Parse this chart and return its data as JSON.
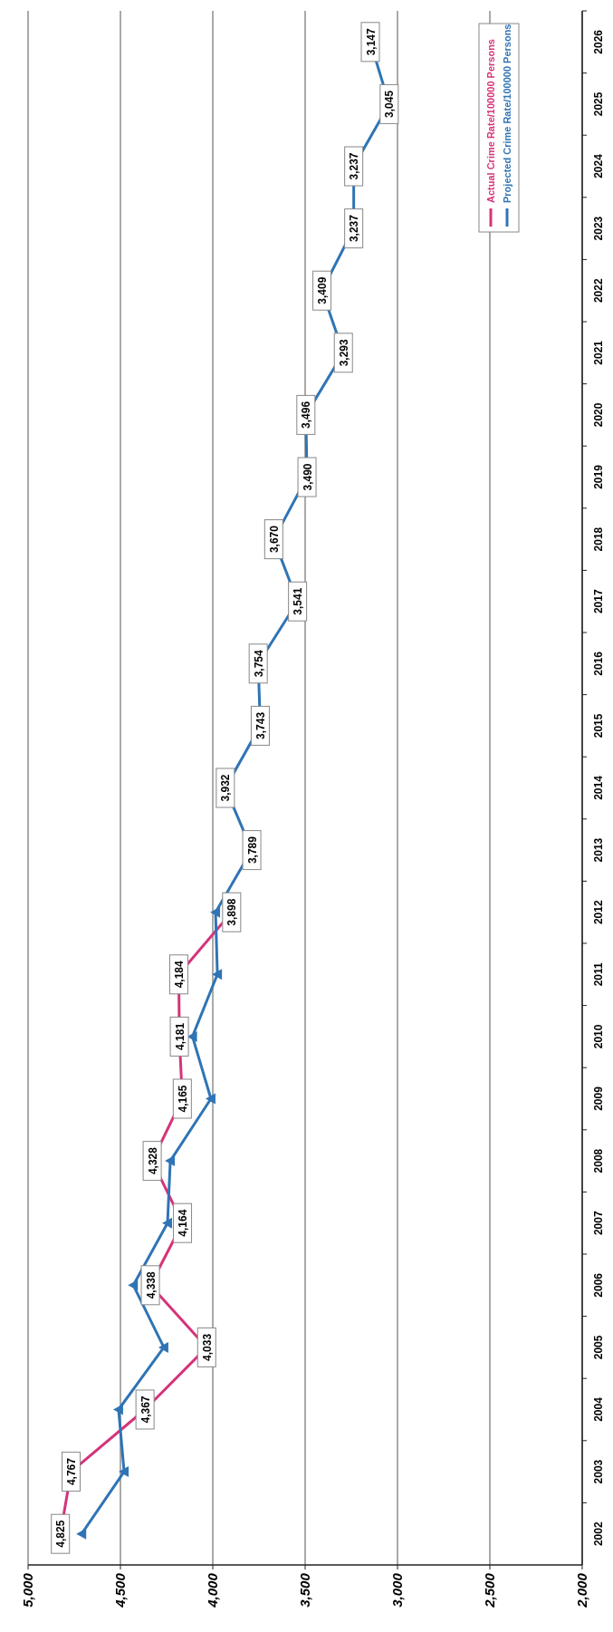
{
  "chart_data": {
    "type": "line",
    "orientation": "horizontal",
    "categories": [
      "2026",
      "2025",
      "2024",
      "2023",
      "2022",
      "2021",
      "2020",
      "2019",
      "2018",
      "2017",
      "2016",
      "2015",
      "2014",
      "2013",
      "2012",
      "2011",
      "2010",
      "2009",
      "2008",
      "2007",
      "2006",
      "2005",
      "2004",
      "2003",
      "2002"
    ],
    "series": [
      {
        "name": "Actual Crime Rate/100000 Persons",
        "color": "#d6337a",
        "marker": "square",
        "values": [
          null,
          null,
          null,
          null,
          null,
          null,
          null,
          null,
          null,
          null,
          null,
          null,
          null,
          null,
          3898,
          4184,
          4181,
          4165,
          4328,
          4164,
          4338,
          4033,
          4367,
          4767,
          4825
        ],
        "value_labels": [
          null,
          null,
          null,
          null,
          null,
          null,
          null,
          null,
          null,
          null,
          null,
          null,
          null,
          null,
          "3,898",
          "4,184",
          "4,181",
          "4,165",
          "4,328",
          "4,164",
          "4,338",
          "4,033",
          "4,367",
          "4,767",
          "4,825"
        ]
      },
      {
        "name": "Projected Crime Rate/100000 Persons",
        "color": "#2f74b5",
        "marker": "triangle",
        "values": [
          3147,
          3045,
          3237,
          3237,
          3409,
          3293,
          3496,
          3490,
          3670,
          3541,
          3754,
          3743,
          3932,
          3789,
          3985,
          3975,
          4110,
          4010,
          4230,
          4245,
          4430,
          4265,
          4510,
          4480,
          4710
        ],
        "value_labels": [
          "3,147",
          "3,045",
          "3,237",
          "3,237",
          "3,409",
          "3,293",
          "3,496",
          "3,490",
          "3,670",
          "3,541",
          "3,754",
          "3,743",
          "3,932",
          "3,789",
          null,
          null,
          null,
          null,
          null,
          null,
          null,
          null,
          null,
          null,
          null
        ]
      }
    ],
    "xlim": [
      5000,
      2000
    ],
    "xticks": [
      {
        "value": 5000,
        "label": "5,000"
      },
      {
        "value": 4500,
        "label": "4,500"
      },
      {
        "value": 4000,
        "label": "4,000"
      },
      {
        "value": 3500,
        "label": "3,500"
      },
      {
        "value": 3000,
        "label": "3,000"
      },
      {
        "value": 2500,
        "label": "2,500"
      },
      {
        "value": 2000,
        "label": "2,000"
      }
    ],
    "grid": "x",
    "legend": "top right"
  }
}
